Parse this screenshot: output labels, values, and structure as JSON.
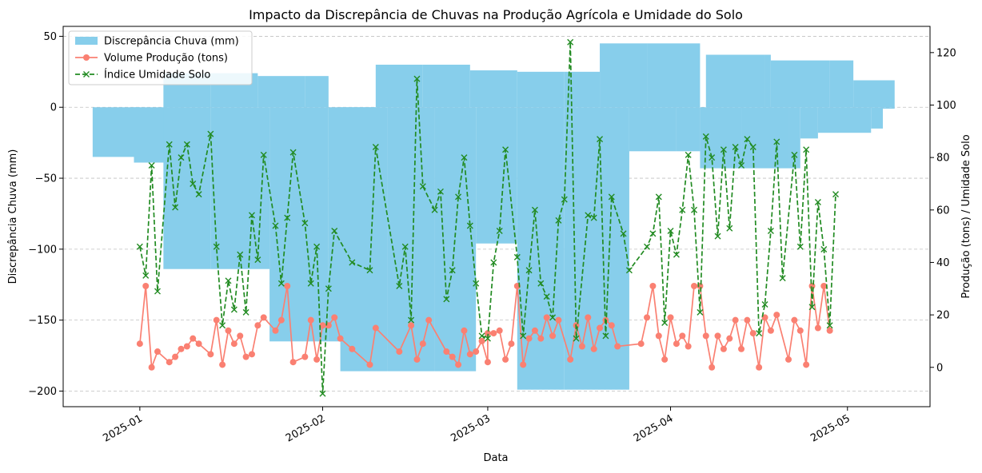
{
  "chart_data": {
    "type": "bar+line",
    "title": "Impacto da Discrepância de Chuvas na Produção Agrícola e Umidade do Solo",
    "xlabel": "Data",
    "ylabel_left": "Discrepância Chuva (mm)",
    "ylabel_right": "Produção (tons) / Umidade Solo",
    "ylim_left": [
      -211,
      57
    ],
    "ylim_right": [
      -15,
      130
    ],
    "yticks_left": [
      50,
      0,
      -50,
      -100,
      -150,
      -200
    ],
    "ytick_labels_left": [
      "50",
      "0",
      "−50",
      "−100",
      "−150",
      "−200"
    ],
    "yticks_right": [
      0,
      20,
      40,
      60,
      80,
      100,
      120
    ],
    "ytick_labels_right": [
      "0",
      "20",
      "40",
      "60",
      "80",
      "100",
      "120"
    ],
    "xticks": [
      "2025-01-01",
      "2025-02-01",
      "2025-03-01",
      "2025-04-01",
      "2025-05-01"
    ],
    "xtick_labels": [
      "2025-01",
      "2025-02",
      "2025-03",
      "2025-04",
      "2025-05"
    ],
    "xlim": [
      "2024-12-19",
      "2025-05-15"
    ],
    "grid": "horizontal dashed",
    "legend_position": "top-left",
    "series": [
      {
        "name": "Discrepância Chuva (mm)",
        "kind": "bar",
        "color": "#87CEEB",
        "bars": [
          {
            "start": "2024-12-24",
            "end": "2025-01-01",
            "value": -35
          },
          {
            "start": "2024-12-31",
            "end": "2025-01-08",
            "value": -39
          },
          {
            "start": "2025-01-05",
            "end": "2025-01-13",
            "value": 24
          },
          {
            "start": "2025-01-13",
            "end": "2025-01-21",
            "value": 24
          },
          {
            "start": "2025-01-05",
            "end": "2025-01-13",
            "value": -114
          },
          {
            "start": "2025-01-13",
            "end": "2025-01-23",
            "value": -114
          },
          {
            "start": "2025-01-21",
            "end": "2025-01-29",
            "value": 22
          },
          {
            "start": "2025-01-29",
            "end": "2025-02-02",
            "value": 22
          },
          {
            "start": "2025-01-23",
            "end": "2025-02-02",
            "value": -165
          },
          {
            "start": "2025-02-02",
            "end": "2025-02-10",
            "value": -165
          },
          {
            "start": "2025-02-10",
            "end": "2025-02-18",
            "value": 30
          },
          {
            "start": "2025-02-18",
            "end": "2025-02-26",
            "value": 30
          },
          {
            "start": "2025-02-04",
            "end": "2025-02-12",
            "value": -186
          },
          {
            "start": "2025-02-12",
            "end": "2025-02-20",
            "value": -186
          },
          {
            "start": "2025-02-20",
            "end": "2025-02-27",
            "value": -186
          },
          {
            "start": "2025-02-26",
            "end": "2025-03-06",
            "value": 26
          },
          {
            "start": "2025-02-27",
            "end": "2025-03-06",
            "value": -96
          },
          {
            "start": "2025-03-06",
            "end": "2025-03-14",
            "value": 25
          },
          {
            "start": "2025-03-14",
            "end": "2025-03-20",
            "value": 25
          },
          {
            "start": "2025-03-06",
            "end": "2025-03-14",
            "value": -199
          },
          {
            "start": "2025-03-14",
            "end": "2025-03-25",
            "value": -199
          },
          {
            "start": "2025-03-20",
            "end": "2025-03-28",
            "value": 45
          },
          {
            "start": "2025-03-28",
            "end": "2025-04-06",
            "value": 45
          },
          {
            "start": "2025-03-25",
            "end": "2025-04-02",
            "value": -31
          },
          {
            "start": "2025-04-02",
            "end": "2025-04-06",
            "value": -31
          },
          {
            "start": "2025-04-06",
            "end": "2025-04-13",
            "value": -43
          },
          {
            "start": "2025-04-13",
            "end": "2025-04-21",
            "value": -43
          },
          {
            "start": "2025-04-21",
            "end": "2025-04-23",
            "value": -43
          },
          {
            "start": "2025-04-07",
            "end": "2025-04-17",
            "value": 37
          },
          {
            "start": "2025-04-17",
            "end": "2025-04-18",
            "value": 37
          },
          {
            "start": "2025-04-18",
            "end": "2025-04-28",
            "value": 33
          },
          {
            "start": "2025-04-28",
            "end": "2025-05-02",
            "value": 33
          },
          {
            "start": "2025-04-23",
            "end": "2025-04-26",
            "value": -22
          },
          {
            "start": "2025-04-26",
            "end": "2025-05-05",
            "value": -18
          },
          {
            "start": "2025-05-05",
            "end": "2025-05-07",
            "value": -15
          },
          {
            "start": "2025-05-02",
            "end": "2025-05-09",
            "value": 19
          },
          {
            "start": "2025-05-07",
            "end": "2025-05-09",
            "value": -1
          }
        ]
      },
      {
        "name": "Volume Produção (tons)",
        "kind": "line",
        "color": "#FA8072",
        "marker": "circle",
        "axis": "right",
        "points": [
          [
            "2025-01-01",
            9
          ],
          [
            "2025-01-02",
            31
          ],
          [
            "2025-01-03",
            0
          ],
          [
            "2025-01-04",
            6
          ],
          [
            "2025-01-06",
            2
          ],
          [
            "2025-01-07",
            4
          ],
          [
            "2025-01-08",
            7
          ],
          [
            "2025-01-09",
            8
          ],
          [
            "2025-01-10",
            11
          ],
          [
            "2025-01-11",
            9
          ],
          [
            "2025-01-13",
            5
          ],
          [
            "2025-01-14",
            18
          ],
          [
            "2025-01-15",
            1
          ],
          [
            "2025-01-16",
            14
          ],
          [
            "2025-01-17",
            9
          ],
          [
            "2025-01-18",
            12
          ],
          [
            "2025-01-19",
            4
          ],
          [
            "2025-01-20",
            5
          ],
          [
            "2025-01-21",
            16
          ],
          [
            "2025-01-22",
            19
          ],
          [
            "2025-01-24",
            14
          ],
          [
            "2025-01-25",
            18
          ],
          [
            "2025-01-26",
            31
          ],
          [
            "2025-01-27",
            2
          ],
          [
            "2025-01-29",
            4
          ],
          [
            "2025-01-30",
            18
          ],
          [
            "2025-01-31",
            3
          ],
          [
            "2025-02-01",
            16
          ],
          [
            "2025-02-02",
            16
          ],
          [
            "2025-02-03",
            19
          ],
          [
            "2025-02-04",
            11
          ],
          [
            "2025-02-06",
            7
          ],
          [
            "2025-02-09",
            1
          ],
          [
            "2025-02-10",
            15
          ],
          [
            "2025-02-14",
            6
          ],
          [
            "2025-02-16",
            16
          ],
          [
            "2025-02-17",
            3
          ],
          [
            "2025-02-18",
            9
          ],
          [
            "2025-02-19",
            18
          ],
          [
            "2025-02-22",
            6
          ],
          [
            "2025-02-23",
            4
          ],
          [
            "2025-02-24",
            1
          ],
          [
            "2025-02-25",
            14
          ],
          [
            "2025-02-26",
            5
          ],
          [
            "2025-02-27",
            6
          ],
          [
            "2025-02-28",
            10
          ],
          [
            "2025-03-01",
            2
          ],
          [
            "2025-03-01",
            13
          ],
          [
            "2025-03-02",
            13
          ],
          [
            "2025-03-03",
            14
          ],
          [
            "2025-03-04",
            3
          ],
          [
            "2025-03-05",
            9
          ],
          [
            "2025-03-06",
            31
          ],
          [
            "2025-03-07",
            1
          ],
          [
            "2025-03-08",
            11
          ],
          [
            "2025-03-09",
            14
          ],
          [
            "2025-03-10",
            11
          ],
          [
            "2025-03-11",
            19
          ],
          [
            "2025-03-12",
            12
          ],
          [
            "2025-03-13",
            18
          ],
          [
            "2025-03-15",
            3
          ],
          [
            "2025-03-16",
            16
          ],
          [
            "2025-03-17",
            8
          ],
          [
            "2025-03-18",
            19
          ],
          [
            "2025-03-19",
            7
          ],
          [
            "2025-03-20",
            15
          ],
          [
            "2025-03-21",
            18
          ],
          [
            "2025-03-22",
            16
          ],
          [
            "2025-03-23",
            8
          ],
          [
            "2025-03-27",
            9
          ],
          [
            "2025-03-28",
            19
          ],
          [
            "2025-03-29",
            31
          ],
          [
            "2025-03-30",
            12
          ],
          [
            "2025-03-31",
            3
          ],
          [
            "2025-04-01",
            19
          ],
          [
            "2025-04-02",
            9
          ],
          [
            "2025-04-03",
            12
          ],
          [
            "2025-04-04",
            8
          ],
          [
            "2025-04-05",
            31
          ],
          [
            "2025-04-06",
            31
          ],
          [
            "2025-04-07",
            12
          ],
          [
            "2025-04-08",
            0
          ],
          [
            "2025-04-09",
            12
          ],
          [
            "2025-04-10",
            7
          ],
          [
            "2025-04-11",
            11
          ],
          [
            "2025-04-12",
            18
          ],
          [
            "2025-04-13",
            7
          ],
          [
            "2025-04-14",
            18
          ],
          [
            "2025-04-15",
            13
          ],
          [
            "2025-04-16",
            0
          ],
          [
            "2025-04-17",
            19
          ],
          [
            "2025-04-18",
            14
          ],
          [
            "2025-04-19",
            20
          ],
          [
            "2025-04-21",
            3
          ],
          [
            "2025-04-22",
            18
          ],
          [
            "2025-04-23",
            14
          ],
          [
            "2025-04-24",
            1
          ],
          [
            "2025-04-25",
            31
          ],
          [
            "2025-04-26",
            15
          ],
          [
            "2025-04-27",
            31
          ],
          [
            "2025-04-28",
            14
          ]
        ]
      },
      {
        "name": "Índice Umidade Solo",
        "kind": "line",
        "color": "#228B22",
        "linestyle": "dashed",
        "marker": "x",
        "axis": "right",
        "points": [
          [
            "2025-01-01",
            46
          ],
          [
            "2025-01-02",
            35
          ],
          [
            "2025-01-03",
            77
          ],
          [
            "2025-01-04",
            29
          ],
          [
            "2025-01-06",
            85
          ],
          [
            "2025-01-07",
            61
          ],
          [
            "2025-01-08",
            80
          ],
          [
            "2025-01-09",
            85
          ],
          [
            "2025-01-10",
            70
          ],
          [
            "2025-01-11",
            66
          ],
          [
            "2025-01-13",
            89
          ],
          [
            "2025-01-14",
            46
          ],
          [
            "2025-01-15",
            16
          ],
          [
            "2025-01-16",
            33
          ],
          [
            "2025-01-17",
            22
          ],
          [
            "2025-01-18",
            43
          ],
          [
            "2025-01-19",
            21
          ],
          [
            "2025-01-20",
            58
          ],
          [
            "2025-01-21",
            41
          ],
          [
            "2025-01-22",
            81
          ],
          [
            "2025-01-24",
            54
          ],
          [
            "2025-01-25",
            32
          ],
          [
            "2025-01-26",
            57
          ],
          [
            "2025-01-27",
            82
          ],
          [
            "2025-01-29",
            55
          ],
          [
            "2025-01-30",
            32
          ],
          [
            "2025-01-31",
            46
          ],
          [
            "2025-02-01",
            -10
          ],
          [
            "2025-02-02",
            30
          ],
          [
            "2025-02-03",
            52
          ],
          [
            "2025-02-06",
            40
          ],
          [
            "2025-02-09",
            37
          ],
          [
            "2025-02-10",
            84
          ],
          [
            "2025-02-14",
            31
          ],
          [
            "2025-02-15",
            46
          ],
          [
            "2025-02-16",
            18
          ],
          [
            "2025-02-17",
            110
          ],
          [
            "2025-02-18",
            69
          ],
          [
            "2025-02-20",
            60
          ],
          [
            "2025-02-21",
            67
          ],
          [
            "2025-02-22",
            26
          ],
          [
            "2025-02-23",
            37
          ],
          [
            "2025-02-24",
            65
          ],
          [
            "2025-02-25",
            80
          ],
          [
            "2025-02-26",
            54
          ],
          [
            "2025-02-27",
            32
          ],
          [
            "2025-02-28",
            12
          ],
          [
            "2025-03-01",
            11
          ],
          [
            "2025-03-02",
            40
          ],
          [
            "2025-03-03",
            52
          ],
          [
            "2025-03-04",
            83
          ],
          [
            "2025-03-06",
            42
          ],
          [
            "2025-03-07",
            12
          ],
          [
            "2025-03-08",
            37
          ],
          [
            "2025-03-09",
            60
          ],
          [
            "2025-03-10",
            32
          ],
          [
            "2025-03-11",
            27
          ],
          [
            "2025-03-12",
            19
          ],
          [
            "2025-03-13",
            56
          ],
          [
            "2025-03-14",
            64
          ],
          [
            "2025-03-15",
            124
          ],
          [
            "2025-03-16",
            11
          ],
          [
            "2025-03-18",
            58
          ],
          [
            "2025-03-19",
            57
          ],
          [
            "2025-03-20",
            87
          ],
          [
            "2025-03-21",
            12
          ],
          [
            "2025-03-22",
            65
          ],
          [
            "2025-03-24",
            51
          ],
          [
            "2025-03-25",
            37
          ],
          [
            "2025-03-28",
            46
          ],
          [
            "2025-03-29",
            51
          ],
          [
            "2025-03-30",
            65
          ],
          [
            "2025-03-31",
            17
          ],
          [
            "2025-04-01",
            52
          ],
          [
            "2025-04-02",
            43
          ],
          [
            "2025-04-03",
            60
          ],
          [
            "2025-04-04",
            81
          ],
          [
            "2025-04-05",
            60
          ],
          [
            "2025-04-06",
            21
          ],
          [
            "2025-04-07",
            88
          ],
          [
            "2025-04-08",
            80
          ],
          [
            "2025-04-09",
            50
          ],
          [
            "2025-04-10",
            83
          ],
          [
            "2025-04-11",
            53
          ],
          [
            "2025-04-12",
            84
          ],
          [
            "2025-04-13",
            77
          ],
          [
            "2025-04-14",
            87
          ],
          [
            "2025-04-15",
            84
          ],
          [
            "2025-04-16",
            13
          ],
          [
            "2025-04-17",
            24
          ],
          [
            "2025-04-18",
            52
          ],
          [
            "2025-04-19",
            86
          ],
          [
            "2025-04-20",
            34
          ],
          [
            "2025-04-22",
            81
          ],
          [
            "2025-04-23",
            46
          ],
          [
            "2025-04-24",
            83
          ],
          [
            "2025-04-25",
            23
          ],
          [
            "2025-04-26",
            63
          ],
          [
            "2025-04-27",
            45
          ],
          [
            "2025-04-28",
            16
          ],
          [
            "2025-04-29",
            66
          ]
        ]
      }
    ]
  }
}
